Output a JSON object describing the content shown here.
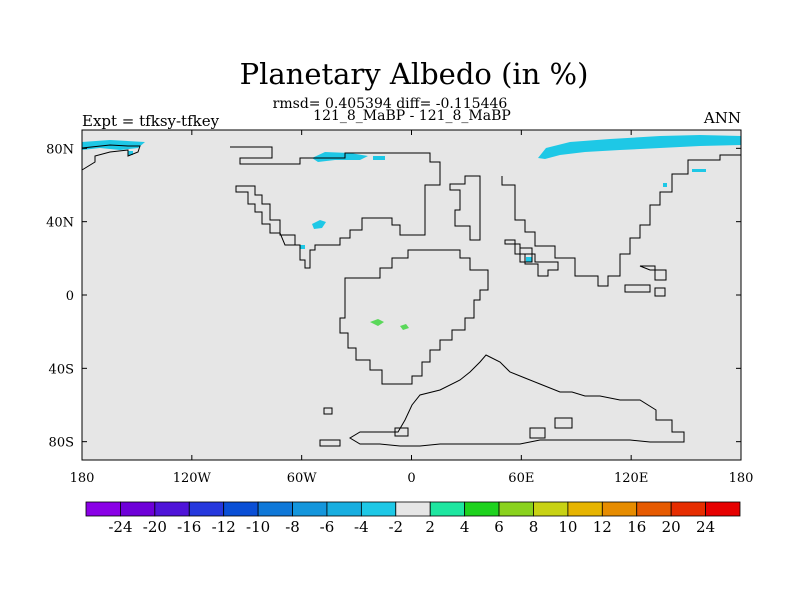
{
  "title": "Planetary Albedo (in %)",
  "stats_line": "rmsd= 0.405394 diff= -0.115446",
  "case_line": "121_8_MaBP - 121_8_MaBP",
  "left_label": "Expt = tfksy-tfkey",
  "right_label": "ANN",
  "map": {
    "projection": "cylindrical-equidistant",
    "lon_range": [
      -180,
      180
    ],
    "lat_range": [
      -90,
      90
    ],
    "background_value_class": "-2 to 2",
    "x_ticks": [
      {
        "value": -180,
        "label": "180"
      },
      {
        "value": -120,
        "label": "120W"
      },
      {
        "value": -60,
        "label": "60W"
      },
      {
        "value": 0,
        "label": "0"
      },
      {
        "value": 60,
        "label": "60E"
      },
      {
        "value": 120,
        "label": "120E"
      },
      {
        "value": 180,
        "label": "180"
      }
    ],
    "y_ticks": [
      {
        "value": 80,
        "label": "80N"
      },
      {
        "value": 40,
        "label": "40N"
      },
      {
        "value": 0,
        "label": "0"
      },
      {
        "value": -40,
        "label": "40S"
      },
      {
        "value": -80,
        "label": "80S"
      }
    ]
  },
  "colorbar": {
    "labels": [
      "-24",
      "-20",
      "-16",
      "-12",
      "-10",
      "-8",
      "-6",
      "-4",
      "-2",
      "2",
      "4",
      "6",
      "8",
      "10",
      "12",
      "16",
      "20",
      "24"
    ],
    "colors": [
      "#8a00e6",
      "#6e00d8",
      "#4f14d9",
      "#2638dd",
      "#0a4fd6",
      "#0f78d8",
      "#1496dc",
      "#18aee0",
      "#1ec8e6",
      "#e6e6e6",
      "#1ee6a0",
      "#1ed21e",
      "#8ad21e",
      "#c8d214",
      "#e6b400",
      "#e68c00",
      "#e65a00",
      "#e62d00",
      "#e60000"
    ]
  }
}
